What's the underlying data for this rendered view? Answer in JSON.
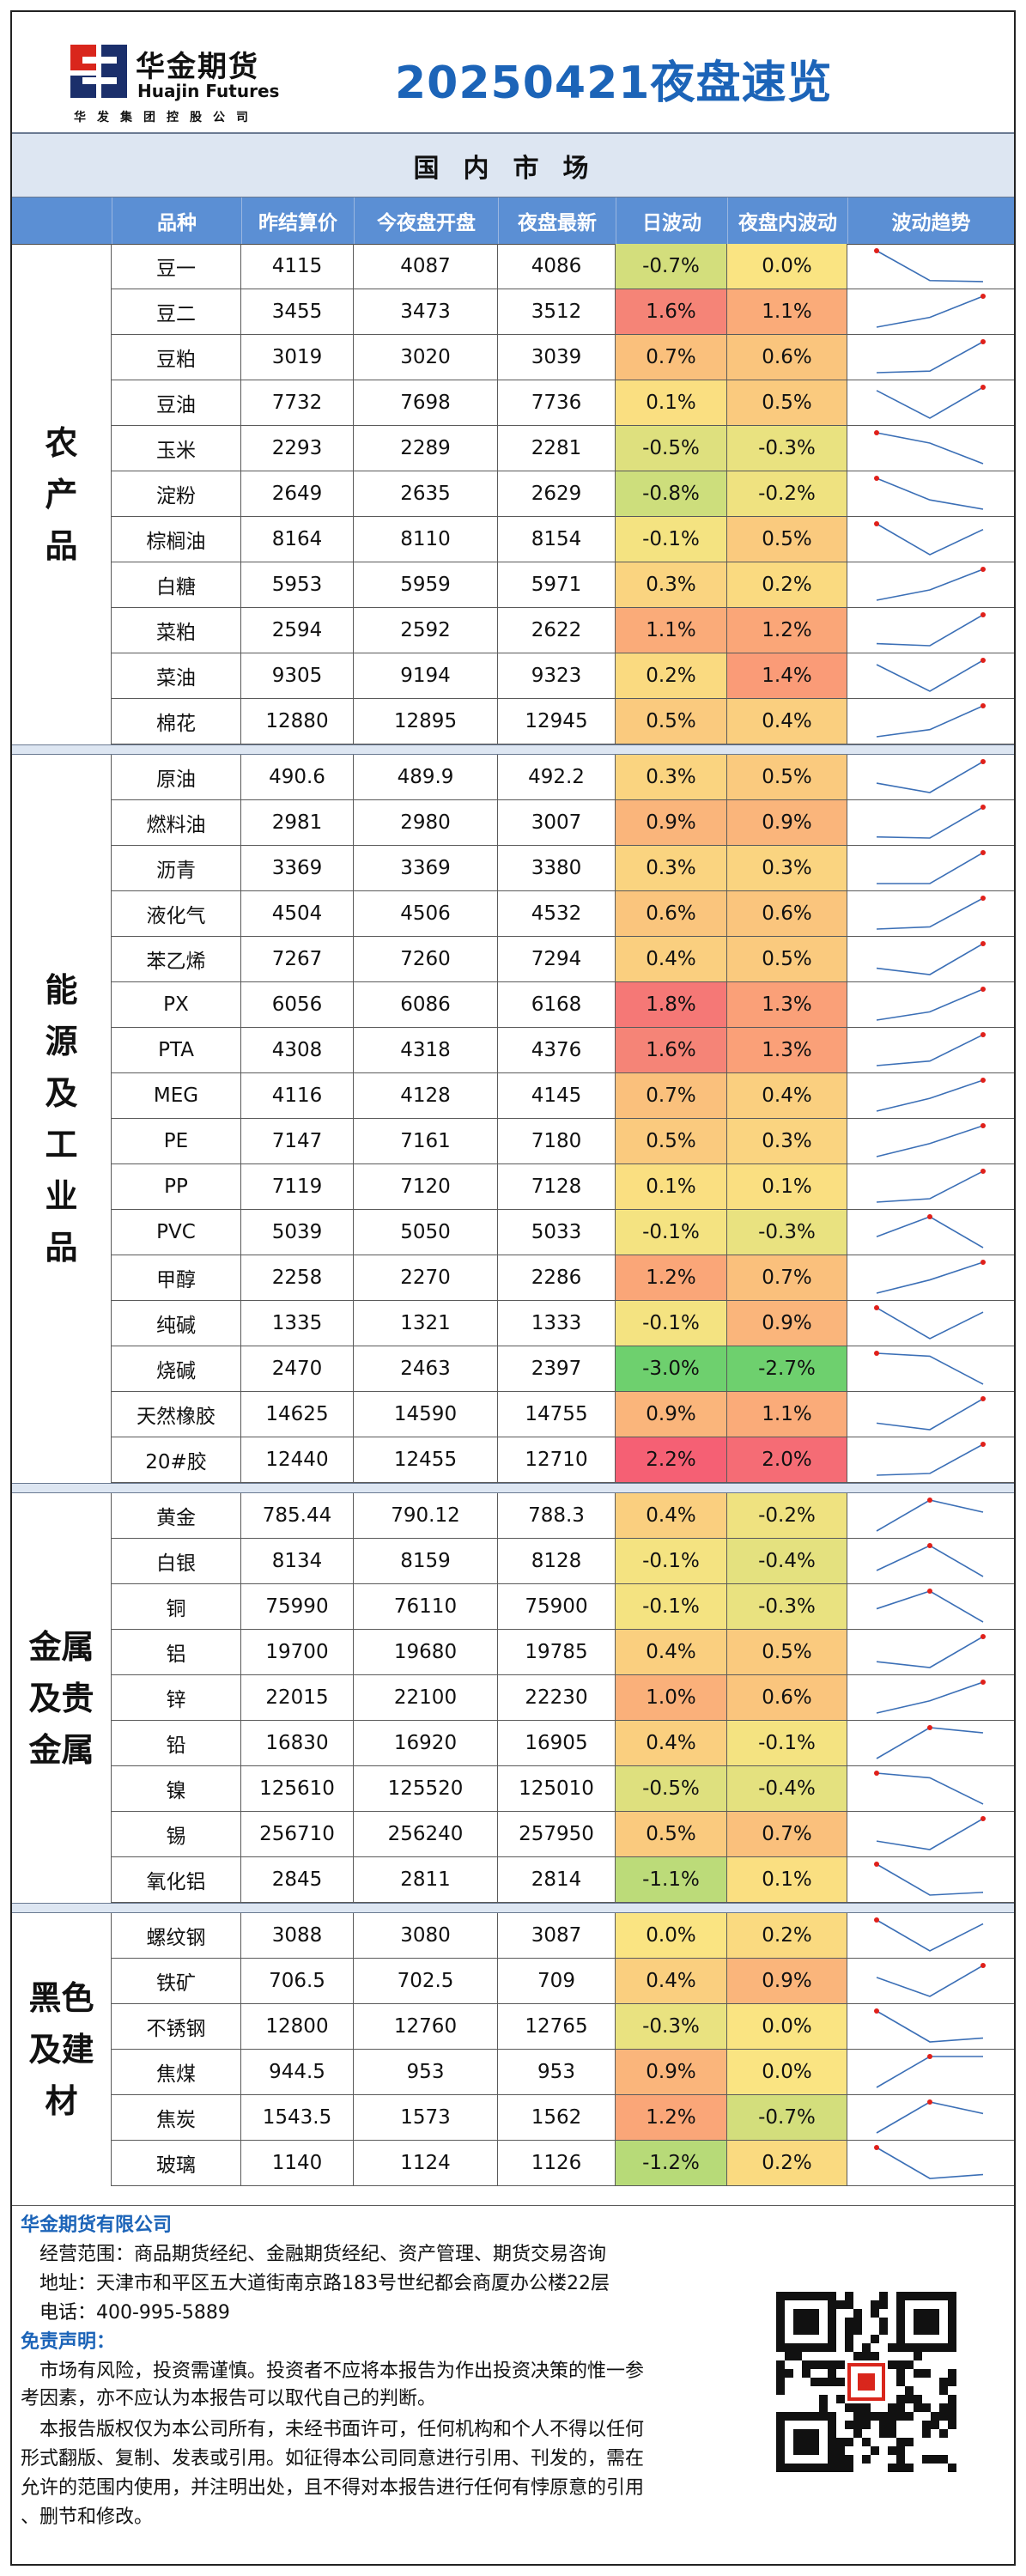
{
  "header": {
    "brand_cn": "华金期货",
    "brand_en": "Huajin Futures",
    "brand_sub": "华发集团控股公司",
    "report_title": "20250421夜盘速览"
  },
  "section_title": "国内市场",
  "columns": [
    "品种",
    "昨结算价",
    "今夜盘开盘",
    "夜盘最新",
    "日波动",
    "夜盘内波动",
    "波动趋势"
  ],
  "groups": [
    {
      "label": "农产品",
      "rows": [
        {
          "name": "豆一",
          "prev": "4115",
          "open": "4087",
          "last": "4086",
          "day": "-0.7%",
          "night": "0.0%"
        },
        {
          "name": "豆二",
          "prev": "3455",
          "open": "3473",
          "last": "3512",
          "day": "1.6%",
          "night": "1.1%"
        },
        {
          "name": "豆粕",
          "prev": "3019",
          "open": "3020",
          "last": "3039",
          "day": "0.7%",
          "night": "0.6%"
        },
        {
          "name": "豆油",
          "prev": "7732",
          "open": "7698",
          "last": "7736",
          "day": "0.1%",
          "night": "0.5%"
        },
        {
          "name": "玉米",
          "prev": "2293",
          "open": "2289",
          "last": "2281",
          "day": "-0.5%",
          "night": "-0.3%"
        },
        {
          "name": "淀粉",
          "prev": "2649",
          "open": "2635",
          "last": "2629",
          "day": "-0.8%",
          "night": "-0.2%"
        },
        {
          "name": "棕榈油",
          "prev": "8164",
          "open": "8110",
          "last": "8154",
          "day": "-0.1%",
          "night": "0.5%"
        },
        {
          "name": "白糖",
          "prev": "5953",
          "open": "5959",
          "last": "5971",
          "day": "0.3%",
          "night": "0.2%"
        },
        {
          "name": "菜粕",
          "prev": "2594",
          "open": "2592",
          "last": "2622",
          "day": "1.1%",
          "night": "1.2%"
        },
        {
          "name": "菜油",
          "prev": "9305",
          "open": "9194",
          "last": "9323",
          "day": "0.2%",
          "night": "1.4%"
        },
        {
          "name": "棉花",
          "prev": "12880",
          "open": "12895",
          "last": "12945",
          "day": "0.5%",
          "night": "0.4%"
        }
      ]
    },
    {
      "label": "能源及工业品",
      "rows": [
        {
          "name": "原油",
          "prev": "490.6",
          "open": "489.9",
          "last": "492.2",
          "day": "0.3%",
          "night": "0.5%"
        },
        {
          "name": "燃料油",
          "prev": "2981",
          "open": "2980",
          "last": "3007",
          "day": "0.9%",
          "night": "0.9%"
        },
        {
          "name": "沥青",
          "prev": "3369",
          "open": "3369",
          "last": "3380",
          "day": "0.3%",
          "night": "0.3%"
        },
        {
          "name": "液化气",
          "prev": "4504",
          "open": "4506",
          "last": "4532",
          "day": "0.6%",
          "night": "0.6%"
        },
        {
          "name": "苯乙烯",
          "prev": "7267",
          "open": "7260",
          "last": "7294",
          "day": "0.4%",
          "night": "0.5%"
        },
        {
          "name": "PX",
          "prev": "6056",
          "open": "6086",
          "last": "6168",
          "day": "1.8%",
          "night": "1.3%"
        },
        {
          "name": "PTA",
          "prev": "4308",
          "open": "4318",
          "last": "4376",
          "day": "1.6%",
          "night": "1.3%"
        },
        {
          "name": "MEG",
          "prev": "4116",
          "open": "4128",
          "last": "4145",
          "day": "0.7%",
          "night": "0.4%"
        },
        {
          "name": "PE",
          "prev": "7147",
          "open": "7161",
          "last": "7180",
          "day": "0.5%",
          "night": "0.3%"
        },
        {
          "name": "PP",
          "prev": "7119",
          "open": "7120",
          "last": "7128",
          "day": "0.1%",
          "night": "0.1%"
        },
        {
          "name": "PVC",
          "prev": "5039",
          "open": "5050",
          "last": "5033",
          "day": "-0.1%",
          "night": "-0.3%"
        },
        {
          "name": "甲醇",
          "prev": "2258",
          "open": "2270",
          "last": "2286",
          "day": "1.2%",
          "night": "0.7%"
        },
        {
          "name": "纯碱",
          "prev": "1335",
          "open": "1321",
          "last": "1333",
          "day": "-0.1%",
          "night": "0.9%"
        },
        {
          "name": "烧碱",
          "prev": "2470",
          "open": "2463",
          "last": "2397",
          "day": "-3.0%",
          "night": "-2.7%"
        },
        {
          "name": "天然橡胶",
          "prev": "14625",
          "open": "14590",
          "last": "14755",
          "day": "0.9%",
          "night": "1.1%"
        },
        {
          "name": "20#胶",
          "prev": "12440",
          "open": "12455",
          "last": "12710",
          "day": "2.2%",
          "night": "2.0%"
        }
      ]
    },
    {
      "label": "金属及贵金属",
      "rows": [
        {
          "name": "黄金",
          "prev": "785.44",
          "open": "790.12",
          "last": "788.3",
          "day": "0.4%",
          "night": "-0.2%"
        },
        {
          "name": "白银",
          "prev": "8134",
          "open": "8159",
          "last": "8128",
          "day": "-0.1%",
          "night": "-0.4%"
        },
        {
          "name": "铜",
          "prev": "75990",
          "open": "76110",
          "last": "75900",
          "day": "-0.1%",
          "night": "-0.3%"
        },
        {
          "name": "铝",
          "prev": "19700",
          "open": "19680",
          "last": "19785",
          "day": "0.4%",
          "night": "0.5%"
        },
        {
          "name": "锌",
          "prev": "22015",
          "open": "22100",
          "last": "22230",
          "day": "1.0%",
          "night": "0.6%"
        },
        {
          "name": "铅",
          "prev": "16830",
          "open": "16920",
          "last": "16905",
          "day": "0.4%",
          "night": "-0.1%"
        },
        {
          "name": "镍",
          "prev": "125610",
          "open": "125520",
          "last": "125010",
          "day": "-0.5%",
          "night": "-0.4%"
        },
        {
          "name": "锡",
          "prev": "256710",
          "open": "256240",
          "last": "257950",
          "day": "0.5%",
          "night": "0.7%"
        },
        {
          "name": "氧化铝",
          "prev": "2845",
          "open": "2811",
          "last": "2814",
          "day": "-1.1%",
          "night": "0.1%"
        }
      ]
    },
    {
      "label": "黑色及建材",
      "rows": [
        {
          "name": "螺纹钢",
          "prev": "3088",
          "open": "3080",
          "last": "3087",
          "day": "0.0%",
          "night": "0.2%"
        },
        {
          "name": "铁矿",
          "prev": "706.5",
          "open": "702.5",
          "last": "709",
          "day": "0.4%",
          "night": "0.9%"
        },
        {
          "name": "不锈钢",
          "prev": "12800",
          "open": "12760",
          "last": "12765",
          "day": "-0.3%",
          "night": "0.0%"
        },
        {
          "name": "焦煤",
          "prev": "944.5",
          "open": "953",
          "last": "953",
          "day": "0.9%",
          "night": "0.0%"
        },
        {
          "name": "焦炭",
          "prev": "1543.5",
          "open": "1573",
          "last": "1562",
          "day": "1.2%",
          "night": "-0.7%"
        },
        {
          "name": "玻璃",
          "prev": "1140",
          "open": "1124",
          "last": "1126",
          "day": "-1.2%",
          "night": "0.2%"
        }
      ]
    }
  ],
  "footer": {
    "company": "华金期货有限公司",
    "scope": "经营范围：商品期货经纪、金融期货经纪、资产管理、期货交易咨询",
    "address": "地址：天津市和平区五大道街南京路183号世纪都会商厦办公楼22层",
    "phone": "电话：400-995-5889",
    "disclaimer_title": "免责声明：",
    "disclaimer_1a": "市场有风险，投资需谨慎。投资者不应将本报告为作出投资决策的惟一参",
    "disclaimer_1b": "考因素，亦不应认为本报告可以取代自己的判断。",
    "disclaimer_2a": "本报告版权仅为本公司所有，未经书面许可，任何机构和个人不得以任何",
    "disclaimer_2b": "形式翻版、复制、发表或引用。如征得本公司同意进行引用、刊发的，需在",
    "disclaimer_2c": "允许的范围内使用，并注明出处，且不得对本报告进行任何有悖原意的引用",
    "disclaimer_2d": "、删节和修改。"
  },
  "colors": {
    "title_blue": "#1c64b8",
    "header_blue": "#5b8fd4",
    "logo_red": "#d9261c",
    "logo_navy": "#1b2f6b"
  }
}
